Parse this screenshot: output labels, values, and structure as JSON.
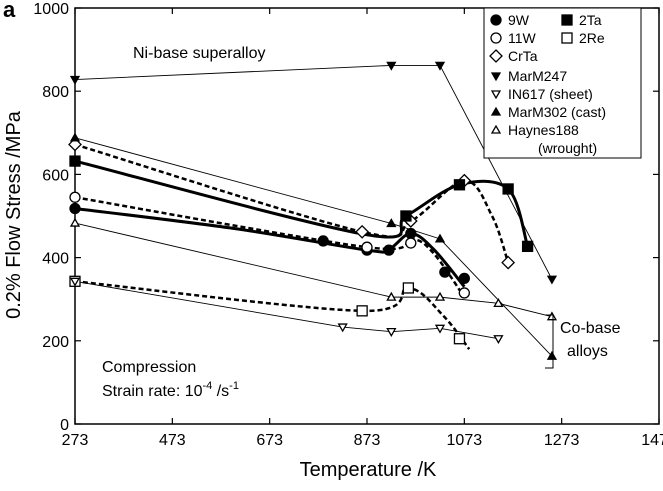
{
  "panel_label": "a",
  "chart_data": {
    "type": "line",
    "xlabel": "Temperature /K",
    "ylabel": "0.2% Flow Stress /MPa",
    "xlim": [
      273,
      1473
    ],
    "ylim": [
      0,
      1000
    ],
    "xticks": [
      273,
      473,
      673,
      873,
      1073,
      1273,
      1473
    ],
    "yticks": [
      0,
      200,
      400,
      600,
      800,
      1000
    ],
    "grid": false,
    "legend_position": "top-right",
    "annotations": {
      "ni_base": "Ni-base superalloy",
      "co_base_line1": "Co-base",
      "co_base_line2": "alloys",
      "compression": "Compression",
      "strain_rate_prefix": "Strain rate: 10",
      "strain_rate_exp": "-4",
      "strain_rate_suffix": " /s",
      "strain_rate_suffix_exp": "-1"
    },
    "series": [
      {
        "name": "9W",
        "marker": "circle-filled",
        "line": "solid-thick",
        "x": [
          273,
          783,
          873,
          918,
          963,
          1033,
          1073
        ],
        "y": [
          518,
          440,
          418,
          418,
          458,
          365,
          350
        ],
        "curve_x": [
          273,
          600,
          873,
          918,
          963,
          1010,
          1073
        ],
        "curve_y": [
          518,
          470,
          418,
          420,
          458,
          420,
          330
        ]
      },
      {
        "name": "11W",
        "marker": "circle-open",
        "line": "dashed",
        "x": [
          273,
          873,
          963,
          1073
        ],
        "y": [
          545,
          425,
          435,
          315
        ],
        "curve_x": [
          273,
          873,
          963,
          1010,
          1073
        ],
        "curve_y": [
          545,
          425,
          445,
          410,
          305
        ]
      },
      {
        "name": "CrTa",
        "marker": "diamond-open",
        "line": "dashed",
        "x": [
          273,
          863,
          963,
          1073,
          1163
        ],
        "y": [
          672,
          462,
          488,
          585,
          388
        ],
        "curve_x": [
          273,
          863,
          963,
          1073,
          1130,
          1163
        ],
        "curve_y": [
          672,
          462,
          488,
          585,
          500,
          388
        ]
      },
      {
        "name": "2Ta",
        "marker": "square-filled",
        "line": "solid-thick",
        "x": [
          273,
          953,
          1063,
          1163,
          1203
        ],
        "y": [
          632,
          500,
          575,
          565,
          427
        ],
        "curve_x": [
          273,
          873,
          953,
          1063,
          1163,
          1203
        ],
        "curve_y": [
          632,
          455,
          500,
          575,
          565,
          427
        ]
      },
      {
        "name": "2Re",
        "marker": "square-open",
        "line": "dashed",
        "x": [
          273,
          863,
          958,
          1063
        ],
        "y": [
          343,
          272,
          327,
          205
        ],
        "curve_x": [
          273,
          863,
          958,
          1030,
          1083
        ],
        "curve_y": [
          343,
          272,
          327,
          260,
          180
        ]
      },
      {
        "name": "MarM247",
        "marker": "triangle-down-filled",
        "line": "thin",
        "x": [
          273,
          923,
          1023,
          1253
        ],
        "y": [
          828,
          862,
          862,
          348
        ]
      },
      {
        "name": "IN617 (sheet)",
        "marker": "triangle-down-open",
        "line": "thin",
        "x": [
          273,
          823,
          923,
          1023,
          1143
        ],
        "y": [
          343,
          233,
          222,
          230,
          205
        ]
      },
      {
        "name": "MarM302 (cast)",
        "marker": "triangle-up-filled",
        "line": "thin",
        "x": [
          273,
          923,
          1023,
          1253
        ],
        "y": [
          688,
          482,
          445,
          163
        ]
      },
      {
        "name": "Haynes188",
        "name_line2": "(wrought)",
        "marker": "triangle-up-open",
        "line": "thin",
        "x": [
          273,
          923,
          1023,
          1143,
          1253
        ],
        "y": [
          483,
          305,
          305,
          290,
          258
        ]
      }
    ]
  }
}
